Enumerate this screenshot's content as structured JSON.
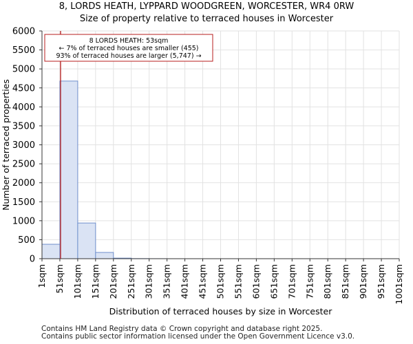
{
  "header": {
    "title": "8, LORDS HEATH, LYPPARD WOODGREEN, WORCESTER, WR4 0RW",
    "subtitle": "Size of property relative to terraced houses in Worcester"
  },
  "footer": {
    "line1": "Contains HM Land Registry data © Crown copyright and database right 2025.",
    "line2": "Contains public sector information licensed under the Open Government Licence v3.0."
  },
  "chart_data": {
    "type": "bar",
    "title": "Size of property relative to terraced houses in Worcester",
    "xlabel": "Distribution of terraced houses by size in Worcester",
    "ylabel": "Number of terraced properties",
    "ylim": [
      0,
      6000
    ],
    "yticks": [
      0,
      500,
      1000,
      1500,
      2000,
      2500,
      3000,
      3500,
      4000,
      4500,
      5000,
      5500,
      6000
    ],
    "bin_start": 1,
    "bin_width": 50,
    "tick_labels": [
      "1sqm",
      "51sqm",
      "101sqm",
      "151sqm",
      "201sqm",
      "251sqm",
      "301sqm",
      "351sqm",
      "401sqm",
      "451sqm",
      "501sqm",
      "551sqm",
      "601sqm",
      "651sqm",
      "701sqm",
      "751sqm",
      "801sqm",
      "851sqm",
      "901sqm",
      "951sqm",
      "1001sqm"
    ],
    "values": [
      380,
      4680,
      940,
      165,
      15,
      3,
      1,
      0,
      0,
      0,
      0,
      0,
      0,
      0,
      0,
      0,
      0,
      0,
      0,
      0
    ],
    "marker": {
      "value": 53,
      "label": "8 LORDS HEATH: 53sqm"
    },
    "annotation": {
      "line1": "8 LORDS HEATH: 53sqm",
      "line2": "← 7% of terraced houses are smaller (455)",
      "line3": "93% of terraced houses are larger (5,747) →"
    },
    "grid": true,
    "colors": {
      "bar_fill": "#dae3f4",
      "bar_edge": "#6f8fcc",
      "marker": "#b71c1c",
      "grid": "#e2e2e2"
    }
  }
}
